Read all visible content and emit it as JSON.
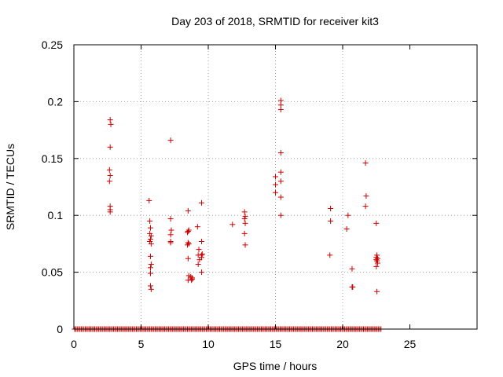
{
  "chart_data": {
    "type": "scatter",
    "title": "Day 203 of 2018, SRMTID for receiver kit3",
    "xlabel": "GPS time / hours",
    "ylabel": "SRMTID / TECUs",
    "xlim": [
      0,
      30
    ],
    "ylim": [
      0,
      0.25
    ],
    "x_ticks": [
      0,
      5,
      10,
      15,
      20,
      25
    ],
    "x_tick_labels": [
      "0",
      "5",
      "10",
      "15",
      "20",
      "25"
    ],
    "y_ticks": [
      0,
      0.05,
      0.1,
      0.15,
      0.2,
      0.25
    ],
    "y_tick_labels": [
      "0",
      "0.05",
      "0.1",
      "0.15",
      "0.2",
      "0.25"
    ],
    "grid": true,
    "marker": "+",
    "series": [
      {
        "name": "kit3",
        "color": "#cc0000",
        "baseline": {
          "y": 0,
          "x_start": 0.05,
          "x_end": 22.85,
          "step": 0.1
        },
        "points": [
          [
            2.7,
            0.184
          ],
          [
            2.75,
            0.18
          ],
          [
            2.7,
            0.16
          ],
          [
            2.65,
            0.14
          ],
          [
            2.7,
            0.135
          ],
          [
            2.65,
            0.13
          ],
          [
            2.7,
            0.108
          ],
          [
            2.7,
            0.105
          ],
          [
            2.7,
            0.103
          ],
          [
            5.6,
            0.113
          ],
          [
            5.65,
            0.095
          ],
          [
            5.7,
            0.089
          ],
          [
            5.65,
            0.084
          ],
          [
            5.75,
            0.082
          ],
          [
            5.7,
            0.079
          ],
          [
            5.65,
            0.077
          ],
          [
            5.75,
            0.075
          ],
          [
            5.7,
            0.064
          ],
          [
            5.75,
            0.057
          ],
          [
            5.7,
            0.054
          ],
          [
            5.7,
            0.049
          ],
          [
            5.7,
            0.038
          ],
          [
            5.75,
            0.035
          ],
          [
            7.2,
            0.166
          ],
          [
            7.2,
            0.097
          ],
          [
            7.25,
            0.087
          ],
          [
            7.2,
            0.083
          ],
          [
            7.2,
            0.077
          ],
          [
            7.2,
            0.076
          ],
          [
            8.5,
            0.104
          ],
          [
            8.55,
            0.087
          ],
          [
            8.5,
            0.086
          ],
          [
            8.45,
            0.085
          ],
          [
            8.5,
            0.076
          ],
          [
            8.55,
            0.075
          ],
          [
            8.45,
            0.074
          ],
          [
            8.5,
            0.062
          ],
          [
            8.55,
            0.047
          ],
          [
            8.5,
            0.043
          ],
          [
            8.7,
            0.046
          ],
          [
            8.8,
            0.045
          ],
          [
            8.75,
            0.043
          ],
          [
            8.8,
            0.044
          ],
          [
            9.2,
            0.09
          ],
          [
            9.3,
            0.07
          ],
          [
            9.25,
            0.065
          ],
          [
            9.35,
            0.061
          ],
          [
            9.25,
            0.057
          ],
          [
            9.5,
            0.111
          ],
          [
            9.5,
            0.077
          ],
          [
            9.55,
            0.066
          ],
          [
            9.5,
            0.063
          ],
          [
            9.5,
            0.065
          ],
          [
            9.5,
            0.05
          ],
          [
            11.8,
            0.092
          ],
          [
            12.7,
            0.103
          ],
          [
            12.75,
            0.099
          ],
          [
            12.7,
            0.097
          ],
          [
            12.75,
            0.093
          ],
          [
            12.7,
            0.084
          ],
          [
            12.75,
            0.074
          ],
          [
            15.0,
            0.134
          ],
          [
            15.0,
            0.127
          ],
          [
            15.0,
            0.12
          ],
          [
            15.4,
            0.201
          ],
          [
            15.4,
            0.197
          ],
          [
            15.4,
            0.193
          ],
          [
            15.4,
            0.155
          ],
          [
            15.4,
            0.138
          ],
          [
            15.4,
            0.13
          ],
          [
            15.4,
            0.116
          ],
          [
            15.4,
            0.1
          ],
          [
            19.1,
            0.106
          ],
          [
            19.1,
            0.095
          ],
          [
            19.05,
            0.065
          ],
          [
            20.4,
            0.1
          ],
          [
            20.3,
            0.088
          ],
          [
            20.7,
            0.053
          ],
          [
            20.7,
            0.037
          ],
          [
            20.75,
            0.037
          ],
          [
            21.7,
            0.146
          ],
          [
            21.75,
            0.117
          ],
          [
            21.7,
            0.108
          ],
          [
            22.5,
            0.093
          ],
          [
            22.55,
            0.065
          ],
          [
            22.5,
            0.063
          ],
          [
            22.6,
            0.062
          ],
          [
            22.5,
            0.061
          ],
          [
            22.55,
            0.06
          ],
          [
            22.6,
            0.058
          ],
          [
            22.5,
            0.055
          ],
          [
            22.55,
            0.033
          ]
        ]
      }
    ]
  }
}
